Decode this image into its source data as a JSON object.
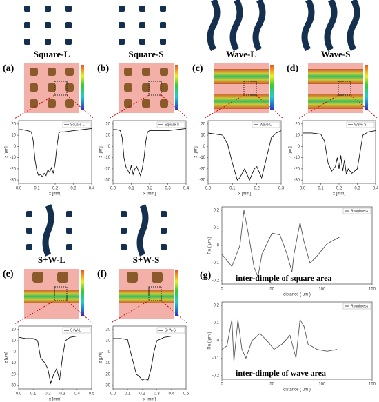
{
  "chart_data": [
    {
      "type": "line",
      "panel_label": "(a)",
      "title": "Square-L",
      "x_label": "x [mm]",
      "y_label": "z [μm]",
      "xlim": [
        0,
        0.4
      ],
      "xticks": [
        {
          "value": 0,
          "label": "0.0"
        },
        0.1,
        0.2,
        0.3,
        0.4
      ],
      "ylim": [
        -33,
        23
      ],
      "yticks": [
        20,
        10,
        0,
        -10,
        -20,
        -30
      ],
      "x": [
        0,
        0.02,
        0.05,
        0.07,
        0.08,
        0.09,
        0.1,
        0.11,
        0.12,
        0.13,
        0.14,
        0.15,
        0.16,
        0.17,
        0.18,
        0.19,
        0.2,
        0.21,
        0.22,
        0.23,
        0.25,
        0.3,
        0.35,
        0.4
      ],
      "series": [
        {
          "name": "Square-L",
          "color": "#111111",
          "values": [
            15,
            15,
            14,
            13,
            5,
            -12,
            -22,
            -26,
            -25,
            -27,
            -24,
            -26,
            -21,
            -23,
            -19,
            -24,
            -15,
            0,
            12,
            13,
            13,
            14,
            15,
            16
          ]
        }
      ]
    },
    {
      "type": "line",
      "panel_label": "(b)",
      "title": "Square-S",
      "x_label": "x [mm]",
      "y_label": "z [μm]",
      "xlim": [
        0,
        0.4
      ],
      "xticks": [
        {
          "value": 0,
          "label": "0.0"
        },
        0.1,
        0.2,
        0.3,
        0.4
      ],
      "ylim": [
        -33,
        23
      ],
      "yticks": [
        20,
        10,
        0,
        -10,
        -20,
        -30
      ],
      "x": [
        0,
        0.02,
        0.04,
        0.05,
        0.06,
        0.07,
        0.08,
        0.09,
        0.1,
        0.11,
        0.12,
        0.13,
        0.14,
        0.15,
        0.16,
        0.17,
        0.18,
        0.19,
        0.2,
        0.22,
        0.25,
        0.3,
        0.35,
        0.4
      ],
      "series": [
        {
          "name": "Square-S",
          "color": "#111111",
          "values": [
            15,
            15,
            14,
            8,
            -10,
            -18,
            -21,
            -24,
            -17,
            -25,
            -20,
            -18,
            -22,
            -26,
            -20,
            -10,
            5,
            13,
            14,
            14,
            14,
            14,
            15,
            16
          ]
        }
      ]
    },
    {
      "type": "line",
      "panel_label": "(c)",
      "title": "Wave-L",
      "x_label": "x [mm]",
      "y_label": "z [μm]",
      "xlim": [
        0,
        0.3
      ],
      "xticks": [
        {
          "value": 0,
          "label": "0.0"
        },
        0.1,
        0.2,
        0.3
      ],
      "ylim": [
        -33,
        23
      ],
      "yticks": [
        20,
        10,
        0,
        -10,
        -20,
        -30
      ],
      "x": [
        0,
        0.03,
        0.06,
        0.08,
        0.1,
        0.12,
        0.13,
        0.15,
        0.17,
        0.19,
        0.2,
        0.22,
        0.24,
        0.26,
        0.28,
        0.3
      ],
      "series": [
        {
          "name": "Wave-L",
          "color": "#111111",
          "values": [
            12,
            11,
            10,
            2,
            -15,
            -30,
            -28,
            -20,
            -30,
            -20,
            -18,
            -28,
            -10,
            8,
            12,
            14
          ]
        }
      ]
    },
    {
      "type": "line",
      "panel_label": "(d)",
      "title": "Wave-S",
      "x_label": "x [mm]",
      "y_label": "z [μm]",
      "xlim": [
        0,
        0.4
      ],
      "xticks": [
        {
          "value": 0,
          "label": "0.0"
        },
        0.1,
        0.2,
        0.3,
        0.4
      ],
      "ylim": [
        -33,
        23
      ],
      "yticks": [
        20,
        10,
        0,
        -10,
        -20,
        -30
      ],
      "x": [
        0,
        0.05,
        0.1,
        0.12,
        0.14,
        0.16,
        0.18,
        0.19,
        0.2,
        0.21,
        0.22,
        0.23,
        0.24,
        0.25,
        0.27,
        0.3,
        0.33,
        0.36,
        0.4
      ],
      "series": [
        {
          "name": "Wave-S",
          "color": "#111111",
          "values": [
            12,
            12,
            11,
            5,
            -15,
            -22,
            -18,
            -10,
            -20,
            -8,
            -22,
            -12,
            -25,
            -20,
            -24,
            -20,
            10,
            13,
            14
          ]
        }
      ]
    },
    {
      "type": "line",
      "panel_label": "(e)",
      "title": "S+W-L",
      "x_label": "x [mm]",
      "y_label": "z [μm]",
      "xlim": [
        0,
        0.5
      ],
      "xticks": [
        {
          "value": 0,
          "label": "0.0"
        },
        0.1,
        0.2,
        0.3,
        0.4,
        0.5
      ],
      "ylim": [
        -33,
        23
      ],
      "yticks": [
        20,
        10,
        0,
        -10,
        -20,
        -30
      ],
      "x": [
        0,
        0.05,
        0.1,
        0.13,
        0.15,
        0.18,
        0.2,
        0.22,
        0.24,
        0.26,
        0.28,
        0.3,
        0.32,
        0.35,
        0.4,
        0.45
      ],
      "series": [
        {
          "name": "S+W-L",
          "color": "#111111",
          "values": [
            13,
            12,
            12,
            10,
            -5,
            -10,
            -15,
            -28,
            -20,
            -15,
            -25,
            -5,
            10,
            13,
            14,
            14
          ]
        }
      ]
    },
    {
      "type": "line",
      "panel_label": "(f)",
      "title": "S+W-S",
      "x_label": "x [mm]",
      "y_label": "z [μm]",
      "xlim": [
        0,
        0.5
      ],
      "xticks": [
        {
          "value": 0,
          "label": "0.0"
        },
        0.1,
        0.2,
        0.3,
        0.4,
        0.5
      ],
      "ylim": [
        -33,
        23
      ],
      "yticks": [
        20,
        10,
        0,
        -10,
        -20,
        -30
      ],
      "x": [
        0,
        0.05,
        0.1,
        0.12,
        0.14,
        0.16,
        0.18,
        0.2,
        0.22,
        0.24,
        0.26,
        0.28,
        0.3,
        0.35,
        0.4,
        0.45
      ],
      "series": [
        {
          "name": "S+W-S",
          "color": "#111111",
          "values": [
            12,
            12,
            11,
            0,
            -10,
            -20,
            -22,
            -25,
            -24,
            -25,
            -15,
            0,
            10,
            13,
            14,
            14
          ]
        }
      ]
    },
    {
      "type": "line",
      "panel_label": "(g)",
      "annotation": "inter-dimple of square  area",
      "x_label": "distance ( μm )",
      "y_label": "Ra ( μm )",
      "xlim": [
        0,
        150
      ],
      "xticks": [
        0,
        50,
        100,
        150
      ],
      "ylim": [
        -0.22,
        0.22
      ],
      "yticks": [
        0.2,
        0.1,
        0,
        -0.1,
        -0.2
      ],
      "x": [
        0,
        10,
        18,
        22,
        27,
        32,
        36,
        40,
        50,
        58,
        65,
        70,
        72,
        78,
        82,
        88,
        95,
        105,
        118
      ],
      "series": [
        {
          "name": "Roughness",
          "color": "#555555",
          "values": [
            -0.05,
            -0.12,
            0.0,
            0.2,
            0.05,
            -0.12,
            -0.18,
            -0.05,
            0.07,
            0.06,
            -0.05,
            -0.15,
            -0.05,
            0.13,
            0.02,
            -0.1,
            -0.06,
            0.01,
            0.05
          ]
        }
      ]
    },
    {
      "type": "line",
      "annotation": "inter-dimple of wave area",
      "x_label": "distance ( μm )",
      "y_label": "Ra ( μm )",
      "xlim": [
        0,
        150
      ],
      "xticks": [
        0,
        50,
        100,
        150
      ],
      "ylim": [
        -0.22,
        0.22
      ],
      "yticks": [
        0.2,
        0.1,
        0,
        -0.1,
        -0.2
      ],
      "x": [
        0,
        5,
        10,
        12,
        16,
        20,
        24,
        30,
        38,
        45,
        52,
        60,
        68,
        74,
        78,
        82,
        86,
        95,
        105,
        115
      ],
      "series": [
        {
          "name": "Roughness",
          "color": "#555555",
          "values": [
            -0.05,
            -0.03,
            0.12,
            -0.12,
            0.12,
            -0.05,
            -0.1,
            0.0,
            0.04,
            0.0,
            -0.05,
            -0.02,
            0.03,
            -0.1,
            0.12,
            0.08,
            -0.02,
            -0.05,
            -0.06,
            -0.05
          ]
        }
      ]
    }
  ]
}
